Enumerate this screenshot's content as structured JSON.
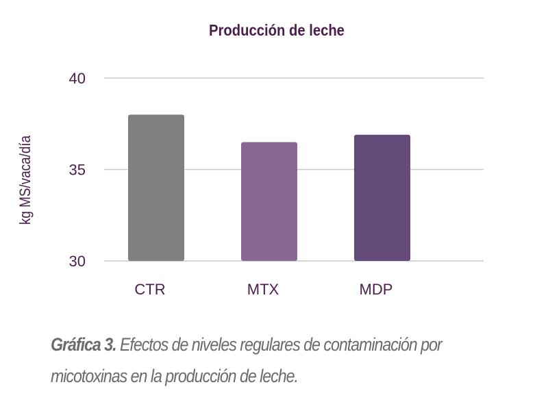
{
  "chart_data": {
    "type": "bar",
    "title": "Producción de leche",
    "xlabel": "",
    "ylabel": "kg MS/vaca/día",
    "categories": [
      "CTR",
      "MTX",
      "MDP"
    ],
    "values": [
      38.0,
      36.5,
      36.9
    ],
    "ylim": [
      30,
      40
    ],
    "yticks": [
      30,
      35,
      40
    ],
    "grid": true,
    "legend": "none",
    "bar_colors": [
      "#808080",
      "#8b6894",
      "#654b7a"
    ],
    "title_color": "#4a1e4c",
    "axis_text_color": "#4a1e4c",
    "grid_color": "#c8c8c8"
  },
  "caption": {
    "lead": "Gráfica 3.",
    "text": "Efectos de niveles regulares de contaminación por micotoxinas en la producción de leche."
  }
}
